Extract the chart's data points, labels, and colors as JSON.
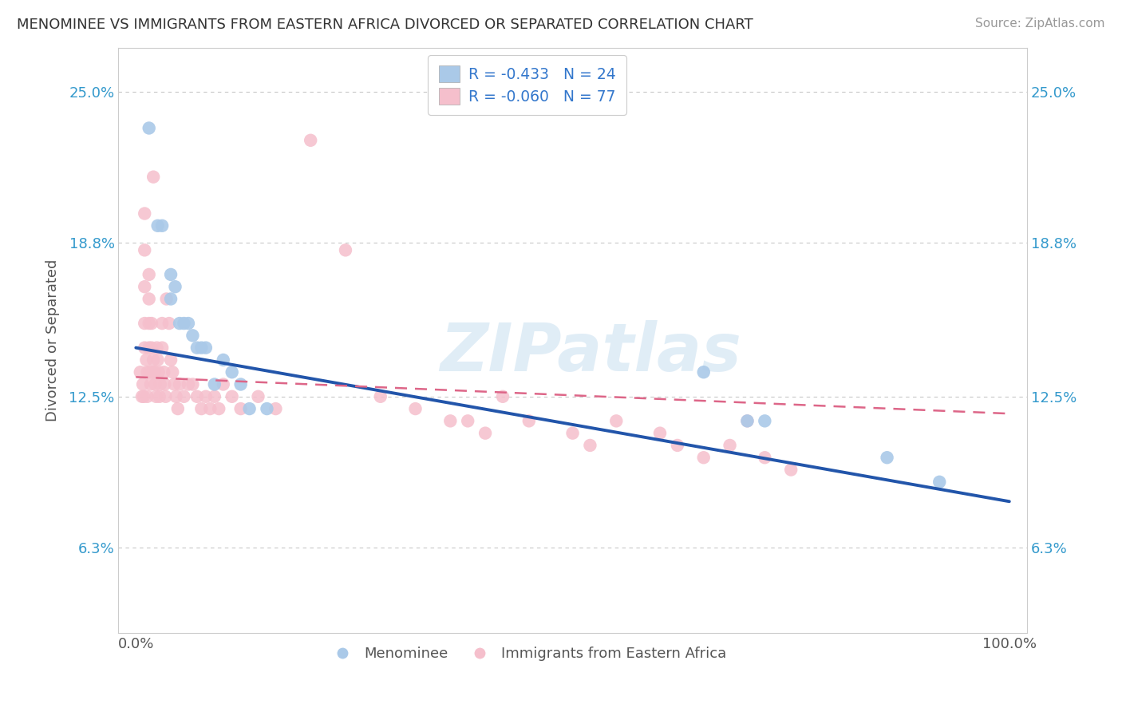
{
  "title": "MENOMINEE VS IMMIGRANTS FROM EASTERN AFRICA DIVORCED OR SEPARATED CORRELATION CHART",
  "source": "Source: ZipAtlas.com",
  "ylabel": "Divorced or Separated",
  "watermark": "ZIPatlas",
  "legend1_r": "-0.433",
  "legend1_n": "24",
  "legend2_r": "-0.060",
  "legend2_n": "77",
  "xlim": [
    -0.02,
    1.02
  ],
  "ylim": [
    0.028,
    0.268
  ],
  "yticks": [
    0.063,
    0.125,
    0.188,
    0.25
  ],
  "ytick_labels": [
    "6.3%",
    "12.5%",
    "18.8%",
    "25.0%"
  ],
  "xtick_labels": [
    "0.0%",
    "100.0%"
  ],
  "xticks": [
    0.0,
    1.0
  ],
  "blue_color": "#aac9e8",
  "pink_color": "#f5bfcc",
  "blue_line_color": "#2255aa",
  "pink_line_color": "#dd6688",
  "menominee_x": [
    0.015,
    0.025,
    0.03,
    0.04,
    0.04,
    0.045,
    0.05,
    0.055,
    0.06,
    0.065,
    0.07,
    0.075,
    0.08,
    0.09,
    0.1,
    0.11,
    0.12,
    0.13,
    0.15,
    0.65,
    0.7,
    0.72,
    0.86,
    0.92
  ],
  "menominee_y": [
    0.235,
    0.195,
    0.195,
    0.165,
    0.175,
    0.17,
    0.155,
    0.155,
    0.155,
    0.15,
    0.145,
    0.145,
    0.145,
    0.13,
    0.14,
    0.135,
    0.13,
    0.12,
    0.12,
    0.135,
    0.115,
    0.115,
    0.1,
    0.09
  ],
  "eastern_africa_x": [
    0.005,
    0.007,
    0.008,
    0.009,
    0.01,
    0.01,
    0.01,
    0.01,
    0.01,
    0.012,
    0.013,
    0.013,
    0.015,
    0.015,
    0.015,
    0.015,
    0.016,
    0.017,
    0.018,
    0.018,
    0.019,
    0.02,
    0.02,
    0.021,
    0.022,
    0.023,
    0.024,
    0.025,
    0.026,
    0.027,
    0.028,
    0.03,
    0.03,
    0.032,
    0.033,
    0.034,
    0.035,
    0.038,
    0.04,
    0.042,
    0.044,
    0.046,
    0.048,
    0.05,
    0.055,
    0.06,
    0.065,
    0.07,
    0.075,
    0.08,
    0.085,
    0.09,
    0.095,
    0.1,
    0.11,
    0.12,
    0.14,
    0.16,
    0.2,
    0.24,
    0.28,
    0.32,
    0.36,
    0.38,
    0.4,
    0.42,
    0.45,
    0.5,
    0.52,
    0.55,
    0.6,
    0.62,
    0.65,
    0.68,
    0.7,
    0.72,
    0.75
  ],
  "eastern_africa_y": [
    0.135,
    0.125,
    0.13,
    0.125,
    0.2,
    0.185,
    0.17,
    0.155,
    0.145,
    0.14,
    0.135,
    0.125,
    0.175,
    0.165,
    0.155,
    0.145,
    0.135,
    0.13,
    0.155,
    0.145,
    0.135,
    0.215,
    0.14,
    0.135,
    0.13,
    0.125,
    0.145,
    0.14,
    0.135,
    0.125,
    0.13,
    0.155,
    0.145,
    0.135,
    0.13,
    0.125,
    0.165,
    0.155,
    0.14,
    0.135,
    0.13,
    0.125,
    0.12,
    0.13,
    0.125,
    0.13,
    0.13,
    0.125,
    0.12,
    0.125,
    0.12,
    0.125,
    0.12,
    0.13,
    0.125,
    0.12,
    0.125,
    0.12,
    0.23,
    0.185,
    0.125,
    0.12,
    0.115,
    0.115,
    0.11,
    0.125,
    0.115,
    0.11,
    0.105,
    0.115,
    0.11,
    0.105,
    0.1,
    0.105,
    0.115,
    0.1,
    0.095
  ],
  "background_color": "#ffffff",
  "grid_color": "#c8c8c8",
  "blue_line_y0": 0.145,
  "blue_line_y1": 0.082,
  "pink_line_x0": 0.0,
  "pink_line_y0": 0.133,
  "pink_line_x1": 1.0,
  "pink_line_y1": 0.118
}
